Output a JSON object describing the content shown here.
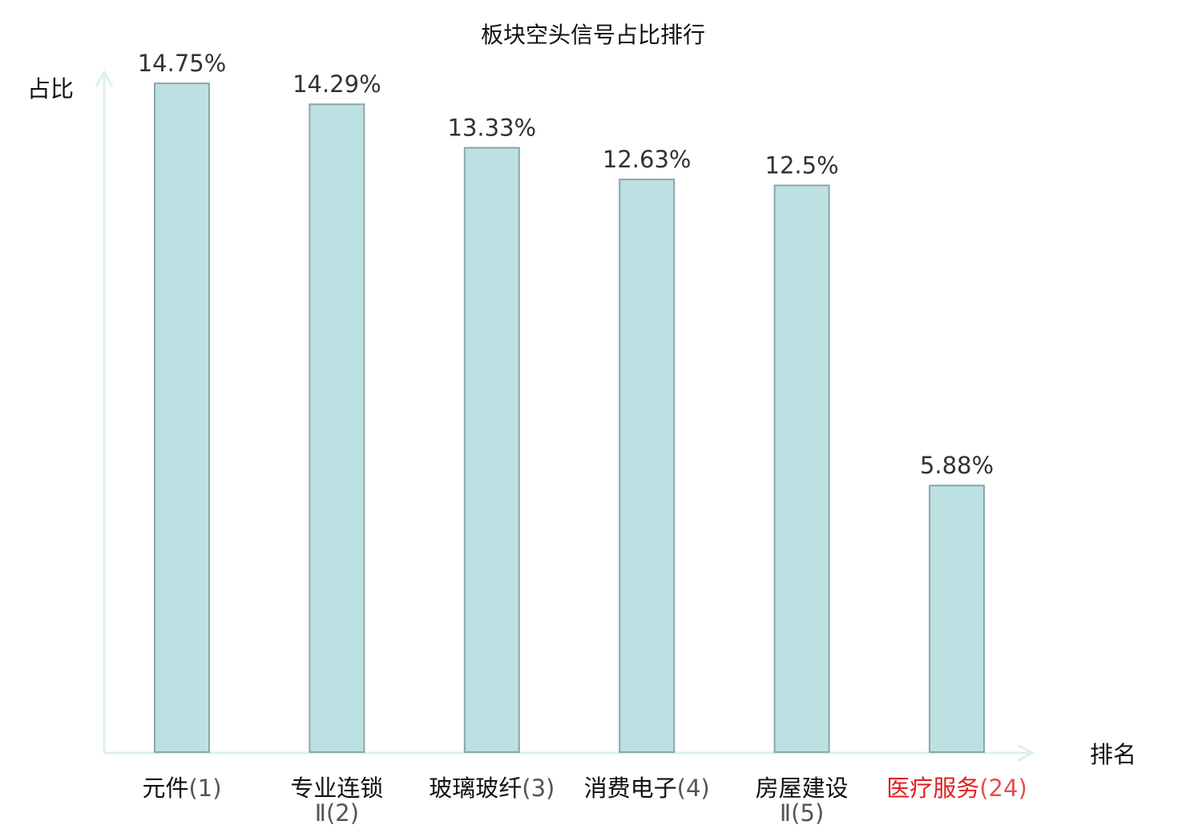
{
  "chart_data": {
    "type": "bar",
    "title": "板块空头信号占比排行",
    "ylabel": "占比",
    "xlabel": "排名",
    "ylim": [
      0,
      15
    ],
    "grid": false,
    "categories": [
      {
        "name": "元件",
        "rank": "(1)",
        "highlight": false
      },
      {
        "name": "专业连锁",
        "name_line2": "Ⅱ",
        "rank": "(2)",
        "highlight": false
      },
      {
        "name": "玻璃玻纤",
        "rank": "(3)",
        "highlight": false
      },
      {
        "name": "消费电子",
        "rank": "(4)",
        "highlight": false
      },
      {
        "name": "房屋建设",
        "name_line2": "Ⅱ",
        "rank": "(5)",
        "highlight": false
      },
      {
        "name": "医疗服务",
        "rank": "(24)",
        "highlight": true
      }
    ],
    "values": [
      14.75,
      14.29,
      13.33,
      12.63,
      12.5,
      5.88
    ],
    "value_labels": [
      "14.75%",
      "14.29%",
      "13.33%",
      "12.63%",
      "12.5%",
      "5.88%"
    ]
  },
  "colors": {
    "bar_fill": "#bde0e3",
    "bar_stroke": "#8aa6a8",
    "axis": "#dcf0ec",
    "highlight": "#e01e1e"
  }
}
